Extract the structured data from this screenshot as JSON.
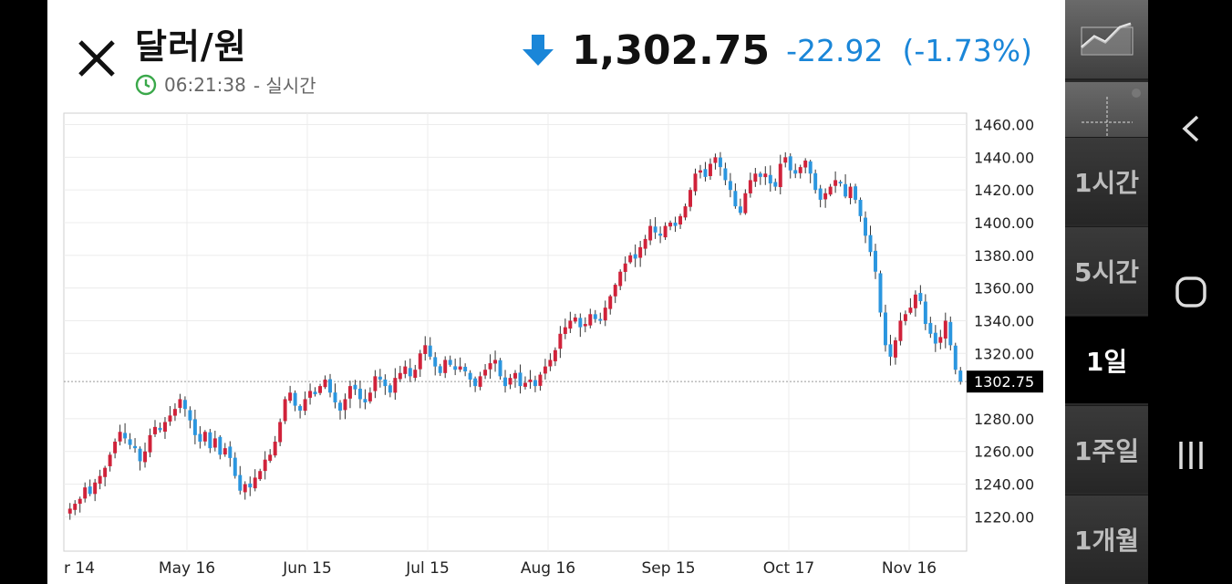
{
  "header": {
    "title": "달러/원",
    "time": "06:21:38",
    "time_suffix": "- 실시간",
    "price": "1,302.75",
    "change": "-22.92",
    "change_pct": "(-1.73%)"
  },
  "sidebar": {
    "timeframes": [
      {
        "label": "1시간",
        "active": false
      },
      {
        "label": "5시간",
        "active": false
      },
      {
        "label": "1일",
        "active": true
      },
      {
        "label": "1주일",
        "active": false
      },
      {
        "label": "1개월",
        "active": false
      }
    ]
  },
  "colors": {
    "up": "#d0223a",
    "down": "#2b96df",
    "accent": "#1a86d8"
  },
  "chart_data": {
    "type": "candlestick",
    "x_ticks": [
      "r 14",
      "May 16",
      "Jun 15",
      "Jul 15",
      "Aug 16",
      "Sep 15",
      "Oct 17",
      "Nov 16"
    ],
    "y_ticks": [
      "1220.00",
      "1240.00",
      "1260.00",
      "1280.00",
      "1320.00",
      "1340.00",
      "1360.00",
      "1380.00",
      "1400.00",
      "1420.00",
      "1440.00",
      "1460.00"
    ],
    "current_price_label": "1302.75",
    "current_price": 1302.75,
    "ylim": [
      1199,
      1467
    ],
    "grid": true,
    "close": [
      1225,
      1228,
      1231,
      1238,
      1234,
      1241,
      1245,
      1250,
      1258,
      1266,
      1272,
      1268,
      1264,
      1262,
      1254,
      1260,
      1270,
      1275,
      1273,
      1278,
      1282,
      1286,
      1292,
      1286,
      1279,
      1270,
      1266,
      1272,
      1262,
      1268,
      1258,
      1262,
      1256,
      1245,
      1236,
      1240,
      1238,
      1244,
      1248,
      1255,
      1258,
      1266,
      1278,
      1292,
      1296,
      1288,
      1285,
      1292,
      1297,
      1295,
      1300,
      1304,
      1296,
      1290,
      1285,
      1292,
      1300,
      1298,
      1292,
      1290,
      1296,
      1306,
      1304,
      1300,
      1296,
      1305,
      1308,
      1312,
      1306,
      1310,
      1320,
      1325,
      1318,
      1312,
      1308,
      1316,
      1313,
      1310,
      1312,
      1309,
      1304,
      1300,
      1306,
      1310,
      1314,
      1316,
      1306,
      1300,
      1305,
      1308,
      1300,
      1302,
      1304,
      1300,
      1307,
      1312,
      1316,
      1322,
      1332,
      1336,
      1340,
      1342,
      1336,
      1338,
      1344,
      1341,
      1340,
      1348,
      1355,
      1362,
      1370,
      1375,
      1380,
      1378,
      1385,
      1390,
      1398,
      1394,
      1392,
      1398,
      1400,
      1398,
      1404,
      1410,
      1420,
      1430,
      1432,
      1428,
      1436,
      1440,
      1434,
      1426,
      1420,
      1410,
      1406,
      1418,
      1426,
      1430,
      1428,
      1430,
      1424,
      1422,
      1436,
      1440,
      1432,
      1430,
      1434,
      1438,
      1430,
      1420,
      1414,
      1418,
      1422,
      1426,
      1424,
      1416,
      1422,
      1414,
      1404,
      1392,
      1382,
      1370,
      1345,
      1325,
      1318,
      1328,
      1340,
      1344,
      1348,
      1356,
      1352,
      1338,
      1332,
      1326,
      1330,
      1340,
      1325,
      1310,
      1302.75
    ]
  }
}
